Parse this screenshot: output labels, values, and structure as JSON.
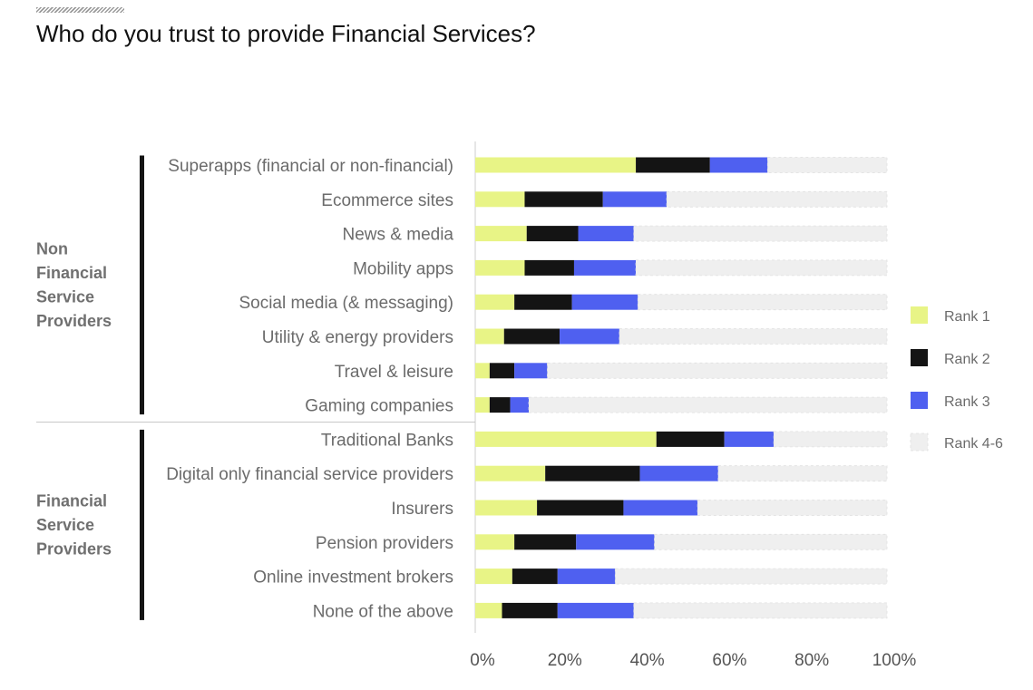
{
  "title": "Who do you trust to provide Financial Services?",
  "colors": {
    "rank1": "#e8f486",
    "rank2": "#141414",
    "rank3": "#4f60f0",
    "rank4_6": "#efefef"
  },
  "chart_data": {
    "type": "bar",
    "orientation": "horizontal",
    "stacked": true,
    "title": "Who do you trust to provide Financial Services?",
    "xlim": [
      0,
      100
    ],
    "xticks": [
      "0%",
      "20%",
      "40%",
      "60%",
      "80%",
      "100%"
    ],
    "groups": [
      {
        "label": [
          "Non",
          "Financial",
          "Service",
          "Providers"
        ],
        "start": 0,
        "end": 7
      },
      {
        "label": [
          "Financial",
          "Service",
          "Providers"
        ],
        "start": 8,
        "end": 13
      }
    ],
    "categories": [
      "Superapps (financial or non-financial)",
      "Ecommerce sites",
      "News & media",
      "Mobility apps",
      "Social media (& messaging)",
      "Utility & energy providers",
      "Travel & leisure",
      "Gaming companies",
      "Traditional Banks",
      "Digital only financial service providers",
      "Insurers",
      "Pension providers",
      "Online investment brokers",
      "None of the above"
    ],
    "series": [
      {
        "name": "Rank 1",
        "values": [
          39,
          12,
          12.5,
          12,
          9.5,
          7,
          3.5,
          3.5,
          44,
          17,
          15,
          9.5,
          9,
          6.5
        ]
      },
      {
        "name": "Rank 2",
        "values": [
          18,
          19,
          12.5,
          12,
          14,
          13.5,
          6,
          5,
          16.5,
          23,
          21,
          15,
          11,
          13.5
        ]
      },
      {
        "name": "Rank 3",
        "values": [
          14,
          15.5,
          13.5,
          15,
          16,
          14.5,
          8,
          4.5,
          12,
          19,
          18,
          19,
          14,
          18.5
        ]
      },
      {
        "name": "Rank 4-6",
        "values": [
          29,
          53.5,
          61.5,
          61,
          60.5,
          65,
          82.5,
          87,
          27.5,
          41,
          46,
          56.5,
          66,
          61.5
        ]
      }
    ],
    "legend": [
      "Rank 1",
      "Rank 2",
      "Rank 3",
      "Rank 4-6"
    ],
    "legend_position": "right"
  }
}
